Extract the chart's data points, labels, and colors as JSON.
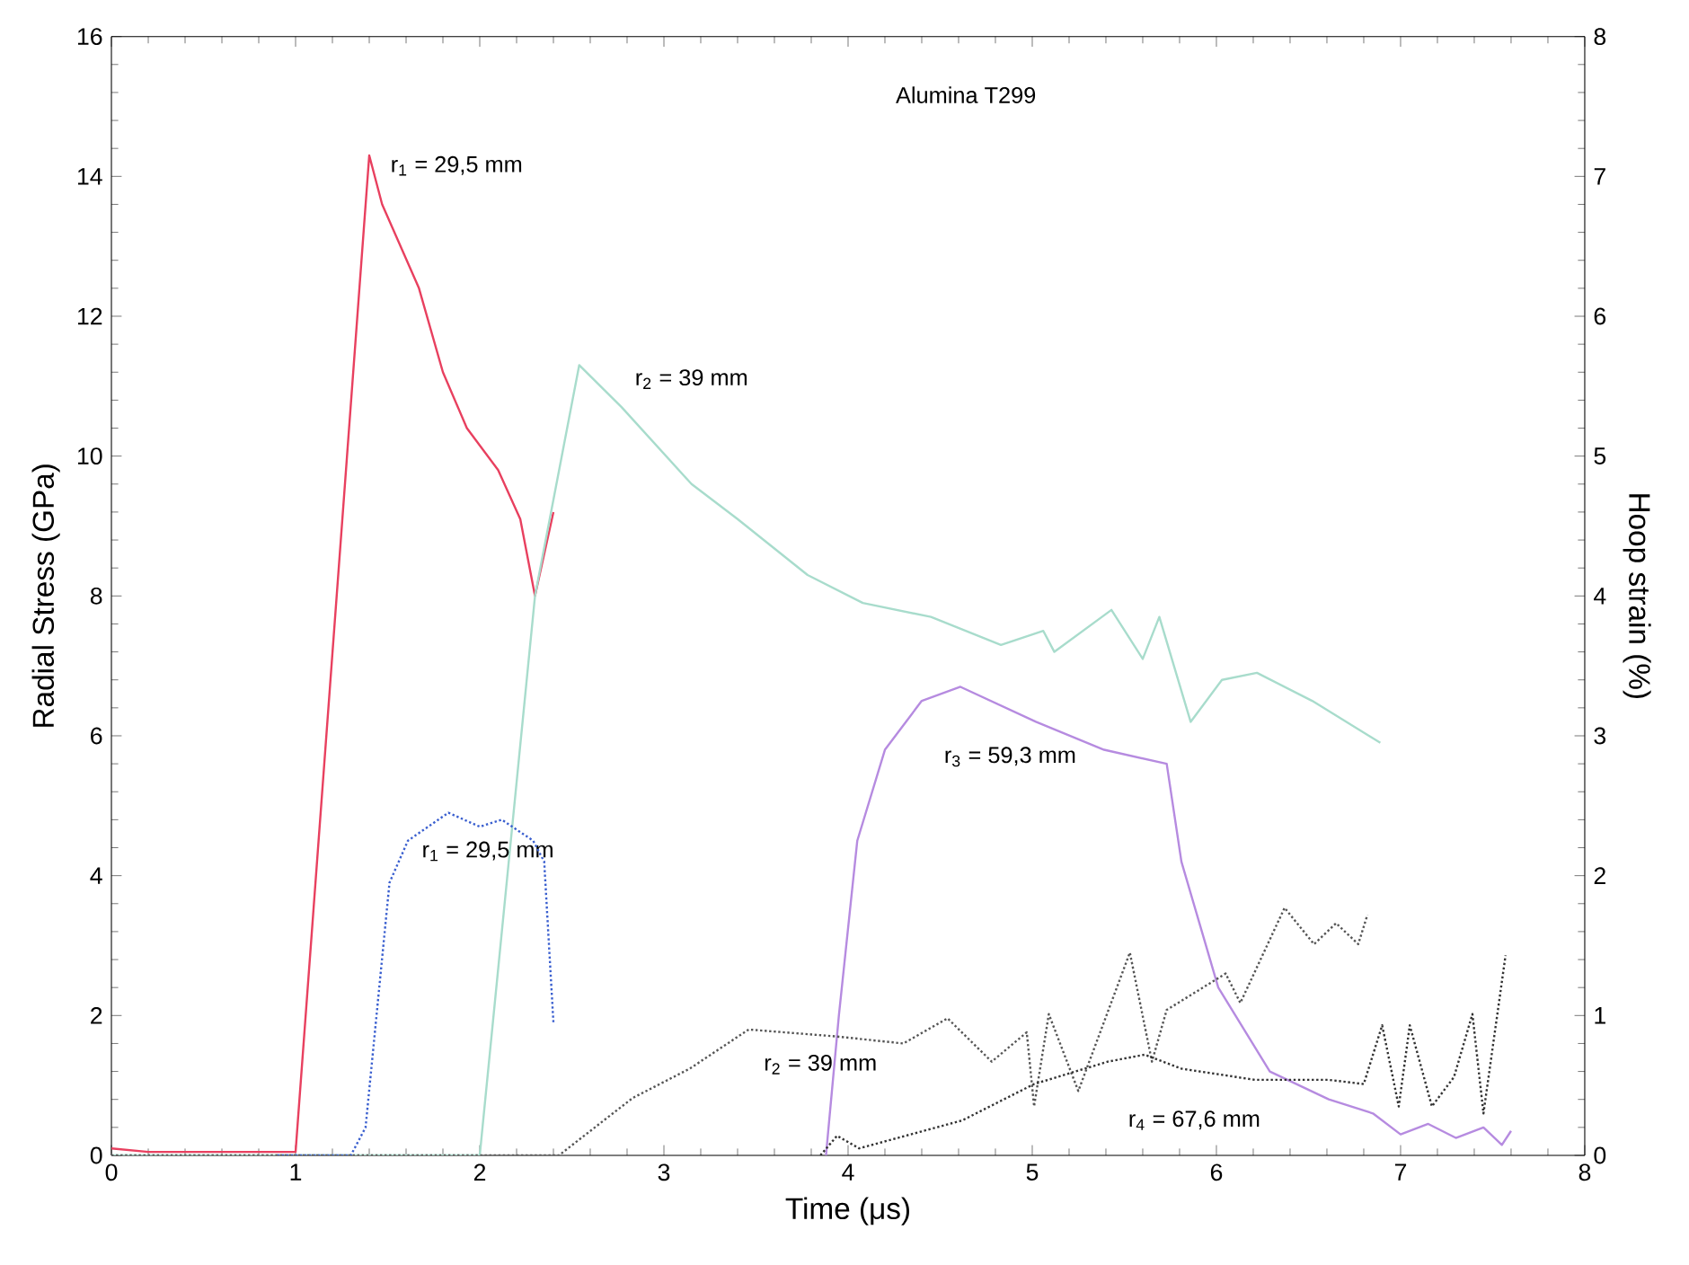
{
  "chart_data": {
    "type": "line",
    "title": "Alumina T299",
    "xlabel": "Time (μs)",
    "ylabel": "Radial Stress (GPa)",
    "y2label": "Hoop strain (%)",
    "xlim": [
      0,
      8
    ],
    "xticks": [
      0,
      1,
      2,
      3,
      4,
      5,
      6,
      7,
      8
    ],
    "ylim": [
      0,
      16
    ],
    "yticks": [
      0,
      2,
      4,
      6,
      8,
      10,
      12,
      14,
      16
    ],
    "y2lim": [
      0,
      8
    ],
    "y2ticks": [
      0,
      1,
      2,
      3,
      4,
      5,
      6,
      7,
      8
    ],
    "grid": false,
    "legend": false,
    "series": [
      {
        "name": "r$_{1}$ = 29,5 mm",
        "color": "#e8405f",
        "line_style": "solid",
        "x": [
          0,
          0.2,
          1.0,
          1.4,
          1.47,
          1.67,
          1.8,
          1.93,
          2.1,
          2.22,
          2.3,
          2.4
        ],
        "values": [
          0.1,
          0.05,
          0.05,
          14.3,
          13.6,
          12.4,
          11.2,
          10.4,
          9.8,
          9.1,
          8.0,
          9.2
        ]
      },
      {
        "name": "r$_{2}$ = 39 mm",
        "color": "#a8dccc",
        "line_style": "solid",
        "x": [
          0,
          2.0,
          2.3,
          2.54,
          2.77,
          3.15,
          3.4,
          3.78,
          4.08,
          4.45,
          4.83,
          5.06,
          5.12,
          5.43,
          5.6,
          5.69,
          5.86,
          6.03,
          6.22,
          6.52,
          6.89
        ],
        "values": [
          0,
          0,
          8,
          11.3,
          10.7,
          9.6,
          9.1,
          8.3,
          7.9,
          7.7,
          7.3,
          7.5,
          7.2,
          7.8,
          7.1,
          7.7,
          6.2,
          6.8,
          6.9,
          6.5,
          5.9
        ]
      },
      {
        "name": "r$_{3}$ = 59,3 mm",
        "color": "#b68be0",
        "line_style": "solid",
        "x": [
          3.88,
          3.95,
          4.05,
          4.2,
          4.4,
          4.61,
          5.02,
          5.39,
          5.73,
          5.81,
          6.01,
          6.29,
          6.61,
          6.85,
          7.0,
          7.15,
          7.3,
          7.45,
          7.55,
          7.6
        ],
        "values": [
          0,
          2,
          4.5,
          5.8,
          6.5,
          6.7,
          6.2,
          5.8,
          5.6,
          4.2,
          2.4,
          1.2,
          0.8,
          0.6,
          0.3,
          0.45,
          0.25,
          0.4,
          0.15,
          0.35
        ]
      },
      {
        "name": "r$_{1}$ = 29,5 mm",
        "color": "#3a5fcf",
        "line_style": "dotted",
        "axis": "y2",
        "x": [
          0.9,
          1.3,
          1.38,
          1.51,
          1.61,
          1.83,
          2.0,
          2.12,
          2.29,
          2.35,
          2.4
        ],
        "values": [
          0,
          0,
          0.2,
          1.95,
          2.25,
          2.45,
          2.35,
          2.4,
          2.25,
          2.1,
          0.95
        ]
      },
      {
        "name": "r$_{2}$ = 39 mm",
        "color": "#555555",
        "line_style": "dotted",
        "axis": "y2",
        "x": [
          0,
          2.43,
          2.83,
          3.14,
          3.46,
          3.94,
          4.3,
          4.54,
          4.78,
          4.97,
          5.01,
          5.09,
          5.25,
          5.53,
          5.65,
          5.73,
          6.05,
          6.13,
          6.37,
          6.53,
          6.65,
          6.77,
          6.82
        ],
        "values": [
          0,
          0,
          0.41,
          0.62,
          0.9,
          0.85,
          0.8,
          0.98,
          0.67,
          0.88,
          0.35,
          1.01,
          0.46,
          1.45,
          0.67,
          1.04,
          1.3,
          1.09,
          1.77,
          1.51,
          1.66,
          1.51,
          1.72
        ]
      },
      {
        "name": "r$_{4}$ = 67,6 mm",
        "color": "#333333",
        "line_style": "dotted",
        "axis": "y2",
        "x": [
          3.85,
          3.94,
          4.06,
          4.62,
          5.01,
          5.21,
          5.41,
          5.61,
          5.81,
          6.21,
          6.61,
          6.8,
          6.9,
          6.99,
          7.05,
          7.17,
          7.29,
          7.39,
          7.45,
          7.57
        ],
        "values": [
          0,
          0.14,
          0.05,
          0.25,
          0.51,
          0.59,
          0.67,
          0.72,
          0.62,
          0.54,
          0.54,
          0.51,
          0.93,
          0.35,
          0.93,
          0.35,
          0.56,
          1.01,
          0.3,
          1.43
        ]
      }
    ]
  }
}
